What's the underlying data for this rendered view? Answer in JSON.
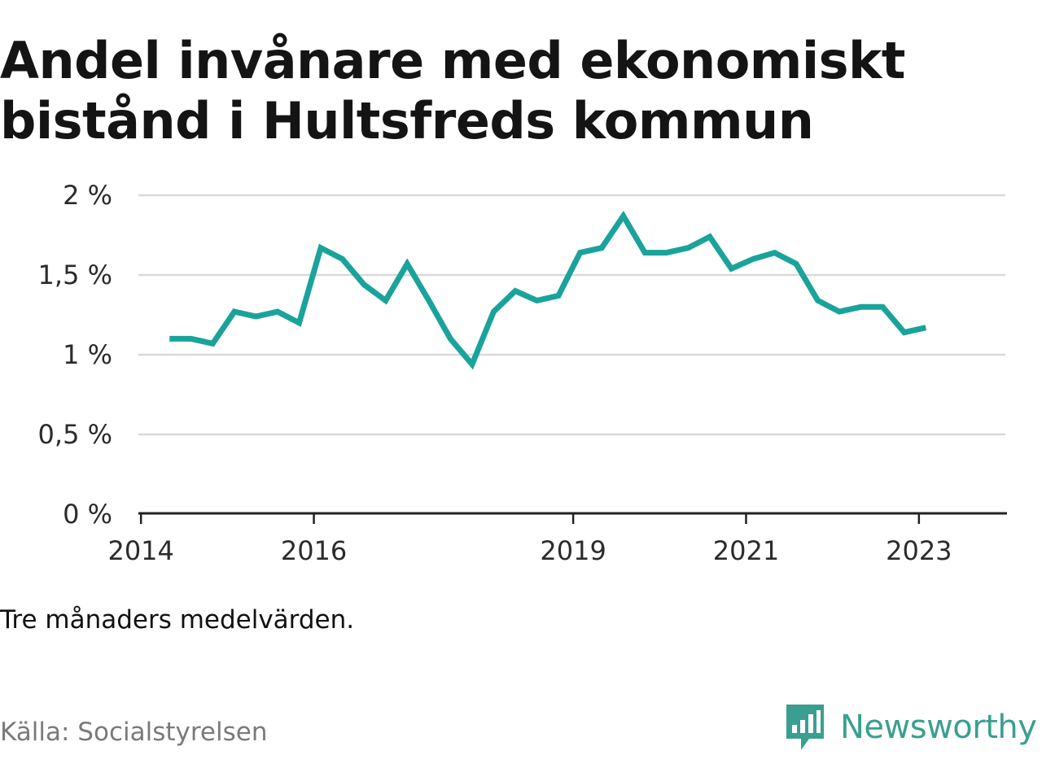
{
  "header": {
    "title": "Andel invånare med ekonomiskt bistånd i Hultsfreds kommun"
  },
  "note": "Tre månaders medelvärden.",
  "source": "Källa: Socialstyrelsen",
  "brand": {
    "name": "Newsworthy",
    "color": "#3a9f91",
    "icon": "newsworthy-logo-icon"
  },
  "chart_data": {
    "type": "line",
    "title": "Andel invånare med ekonomiskt bistånd i Hultsfreds kommun",
    "xlabel": "",
    "ylabel": "",
    "x_ticks": [
      {
        "value": 2014.0,
        "label": "2014"
      },
      {
        "value": 2016.0,
        "label": "2016"
      },
      {
        "value": 2019.0,
        "label": "2019"
      },
      {
        "value": 2021.0,
        "label": "2021"
      },
      {
        "value": 2023.0,
        "label": "2023"
      }
    ],
    "y_ticks": [
      {
        "value": 0,
        "label": "0 %"
      },
      {
        "value": 0.5,
        "label": "0,5 %"
      },
      {
        "value": 1,
        "label": "1 %"
      },
      {
        "value": 1.5,
        "label": "1,5 %"
      },
      {
        "value": 2,
        "label": "2 %"
      }
    ],
    "xlim": [
      2013.97,
      2024.0
    ],
    "ylim": [
      0,
      2
    ],
    "grid": true,
    "line_color": "#1aa39b",
    "series": [
      {
        "values": [
          [
            2014.33,
            1.1
          ],
          [
            2014.58,
            1.1
          ],
          [
            2014.83,
            1.07
          ],
          [
            2015.08,
            1.27
          ],
          [
            2015.33,
            1.24
          ],
          [
            2015.58,
            1.27
          ],
          [
            2015.83,
            1.2
          ],
          [
            2016.08,
            1.67
          ],
          [
            2016.33,
            1.6
          ],
          [
            2016.58,
            1.44
          ],
          [
            2016.83,
            1.34
          ],
          [
            2017.08,
            1.57
          ],
          [
            2017.33,
            1.34
          ],
          [
            2017.58,
            1.1
          ],
          [
            2017.83,
            0.94
          ],
          [
            2018.08,
            1.27
          ],
          [
            2018.33,
            1.4
          ],
          [
            2018.58,
            1.34
          ],
          [
            2018.83,
            1.37
          ],
          [
            2019.08,
            1.64
          ],
          [
            2019.33,
            1.67
          ],
          [
            2019.58,
            1.87
          ],
          [
            2019.83,
            1.64
          ],
          [
            2020.08,
            1.64
          ],
          [
            2020.33,
            1.67
          ],
          [
            2020.58,
            1.74
          ],
          [
            2020.83,
            1.54
          ],
          [
            2021.08,
            1.6
          ],
          [
            2021.33,
            1.64
          ],
          [
            2021.58,
            1.57
          ],
          [
            2021.83,
            1.34
          ],
          [
            2022.08,
            1.27
          ],
          [
            2022.33,
            1.3
          ],
          [
            2022.58,
            1.3
          ],
          [
            2022.83,
            1.14
          ],
          [
            2023.08,
            1.17
          ]
        ]
      }
    ]
  }
}
